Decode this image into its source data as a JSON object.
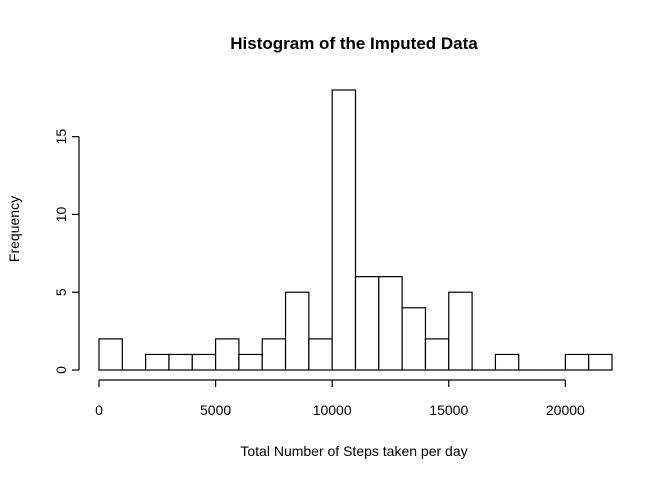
{
  "chart_data": {
    "type": "bar",
    "title": "Histogram of the Imputed Data",
    "xlabel": "Total Number of Steps taken per day",
    "ylabel": "Frequency",
    "bin_width": 1000,
    "bins": [
      {
        "from": 0,
        "to": 1000,
        "count": 2
      },
      {
        "from": 1000,
        "to": 2000,
        "count": 0
      },
      {
        "from": 2000,
        "to": 3000,
        "count": 1
      },
      {
        "from": 3000,
        "to": 4000,
        "count": 1
      },
      {
        "from": 4000,
        "to": 5000,
        "count": 1
      },
      {
        "from": 5000,
        "to": 6000,
        "count": 2
      },
      {
        "from": 6000,
        "to": 7000,
        "count": 1
      },
      {
        "from": 7000,
        "to": 8000,
        "count": 2
      },
      {
        "from": 8000,
        "to": 9000,
        "count": 5
      },
      {
        "from": 9000,
        "to": 10000,
        "count": 2
      },
      {
        "from": 10000,
        "to": 11000,
        "count": 18
      },
      {
        "from": 11000,
        "to": 12000,
        "count": 6
      },
      {
        "from": 12000,
        "to": 13000,
        "count": 6
      },
      {
        "from": 13000,
        "to": 14000,
        "count": 4
      },
      {
        "from": 14000,
        "to": 15000,
        "count": 2
      },
      {
        "from": 15000,
        "to": 16000,
        "count": 5
      },
      {
        "from": 16000,
        "to": 17000,
        "count": 0
      },
      {
        "from": 17000,
        "to": 18000,
        "count": 1
      },
      {
        "from": 18000,
        "to": 19000,
        "count": 0
      },
      {
        "from": 19000,
        "to": 20000,
        "count": 0
      },
      {
        "from": 20000,
        "to": 21000,
        "count": 1
      },
      {
        "from": 21000,
        "to": 22000,
        "count": 1
      }
    ],
    "x_ticks": [
      0,
      5000,
      10000,
      15000,
      20000
    ],
    "y_ticks": [
      0,
      5,
      10,
      15
    ],
    "xlim": [
      0,
      22000
    ],
    "ylim": [
      0,
      18
    ],
    "grid": false,
    "legend": "none"
  }
}
